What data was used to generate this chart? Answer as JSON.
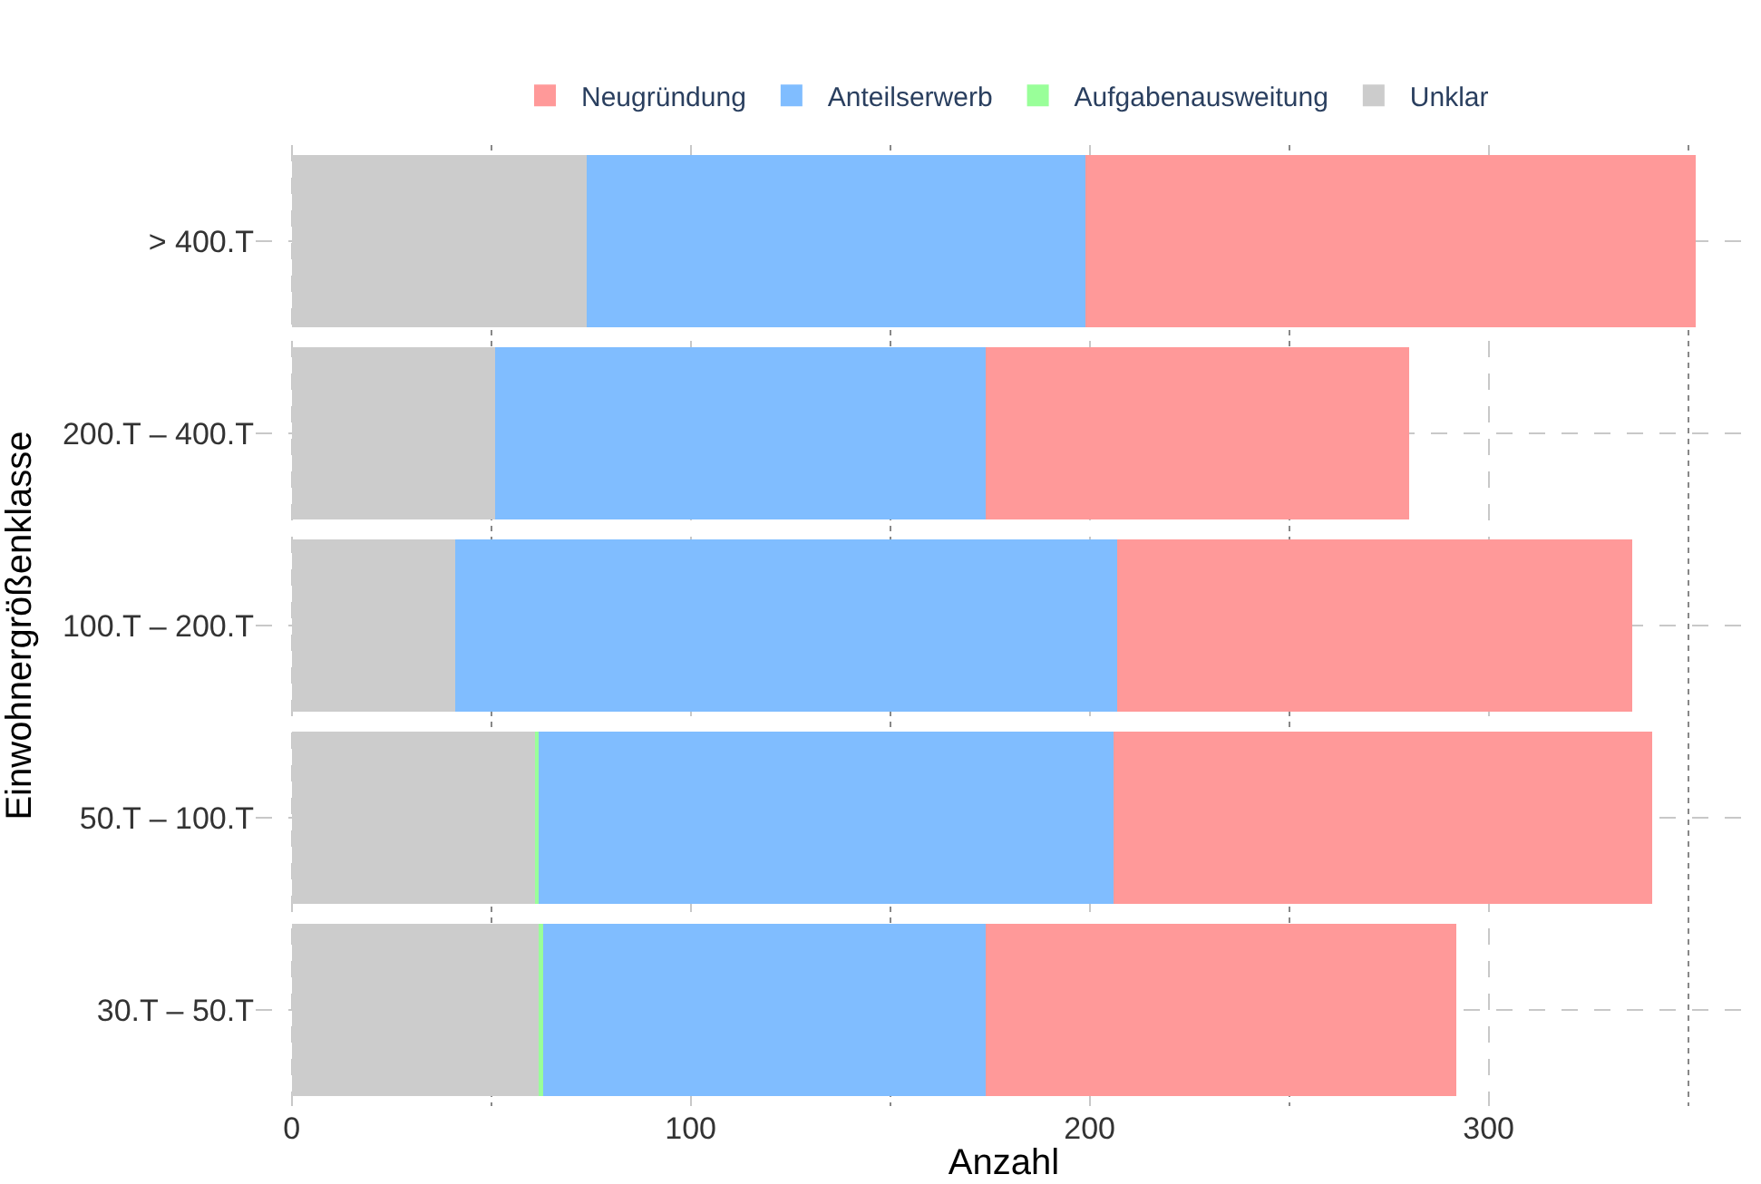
{
  "chart_data": {
    "type": "bar",
    "orientation": "horizontal",
    "stacked": true,
    "xlabel": "Anzahl",
    "ylabel": "Einwohnergrößenklasse",
    "categories": [
      "> 400.T",
      "200.T – 400.T",
      "100.T – 200.T",
      "50.T – 100.T",
      "30.T – 50.T"
    ],
    "series": [
      {
        "name": "Unklar",
        "color": "#cccccc",
        "values": [
          74,
          51,
          41,
          61,
          62
        ]
      },
      {
        "name": "Aufgabenausweitung",
        "color": "#99ff99",
        "values": [
          0,
          0,
          0,
          1,
          1
        ]
      },
      {
        "name": "Anteilserwerb",
        "color": "#80bdff",
        "values": [
          125,
          123,
          166,
          144,
          111
        ]
      },
      {
        "name": "Neugründung",
        "color": "#ff9999",
        "values": [
          153,
          106,
          129,
          135,
          118
        ]
      }
    ],
    "xlim": [
      -9,
      366
    ],
    "xticks": [
      0,
      {
        "value": 50,
        "label": null
      },
      100,
      {
        "value": 150,
        "label": null
      },
      200,
      {
        "value": 250,
        "label": null
      },
      300,
      {
        "value": 350,
        "label": null
      }
    ],
    "grid": true,
    "legend": "top"
  }
}
